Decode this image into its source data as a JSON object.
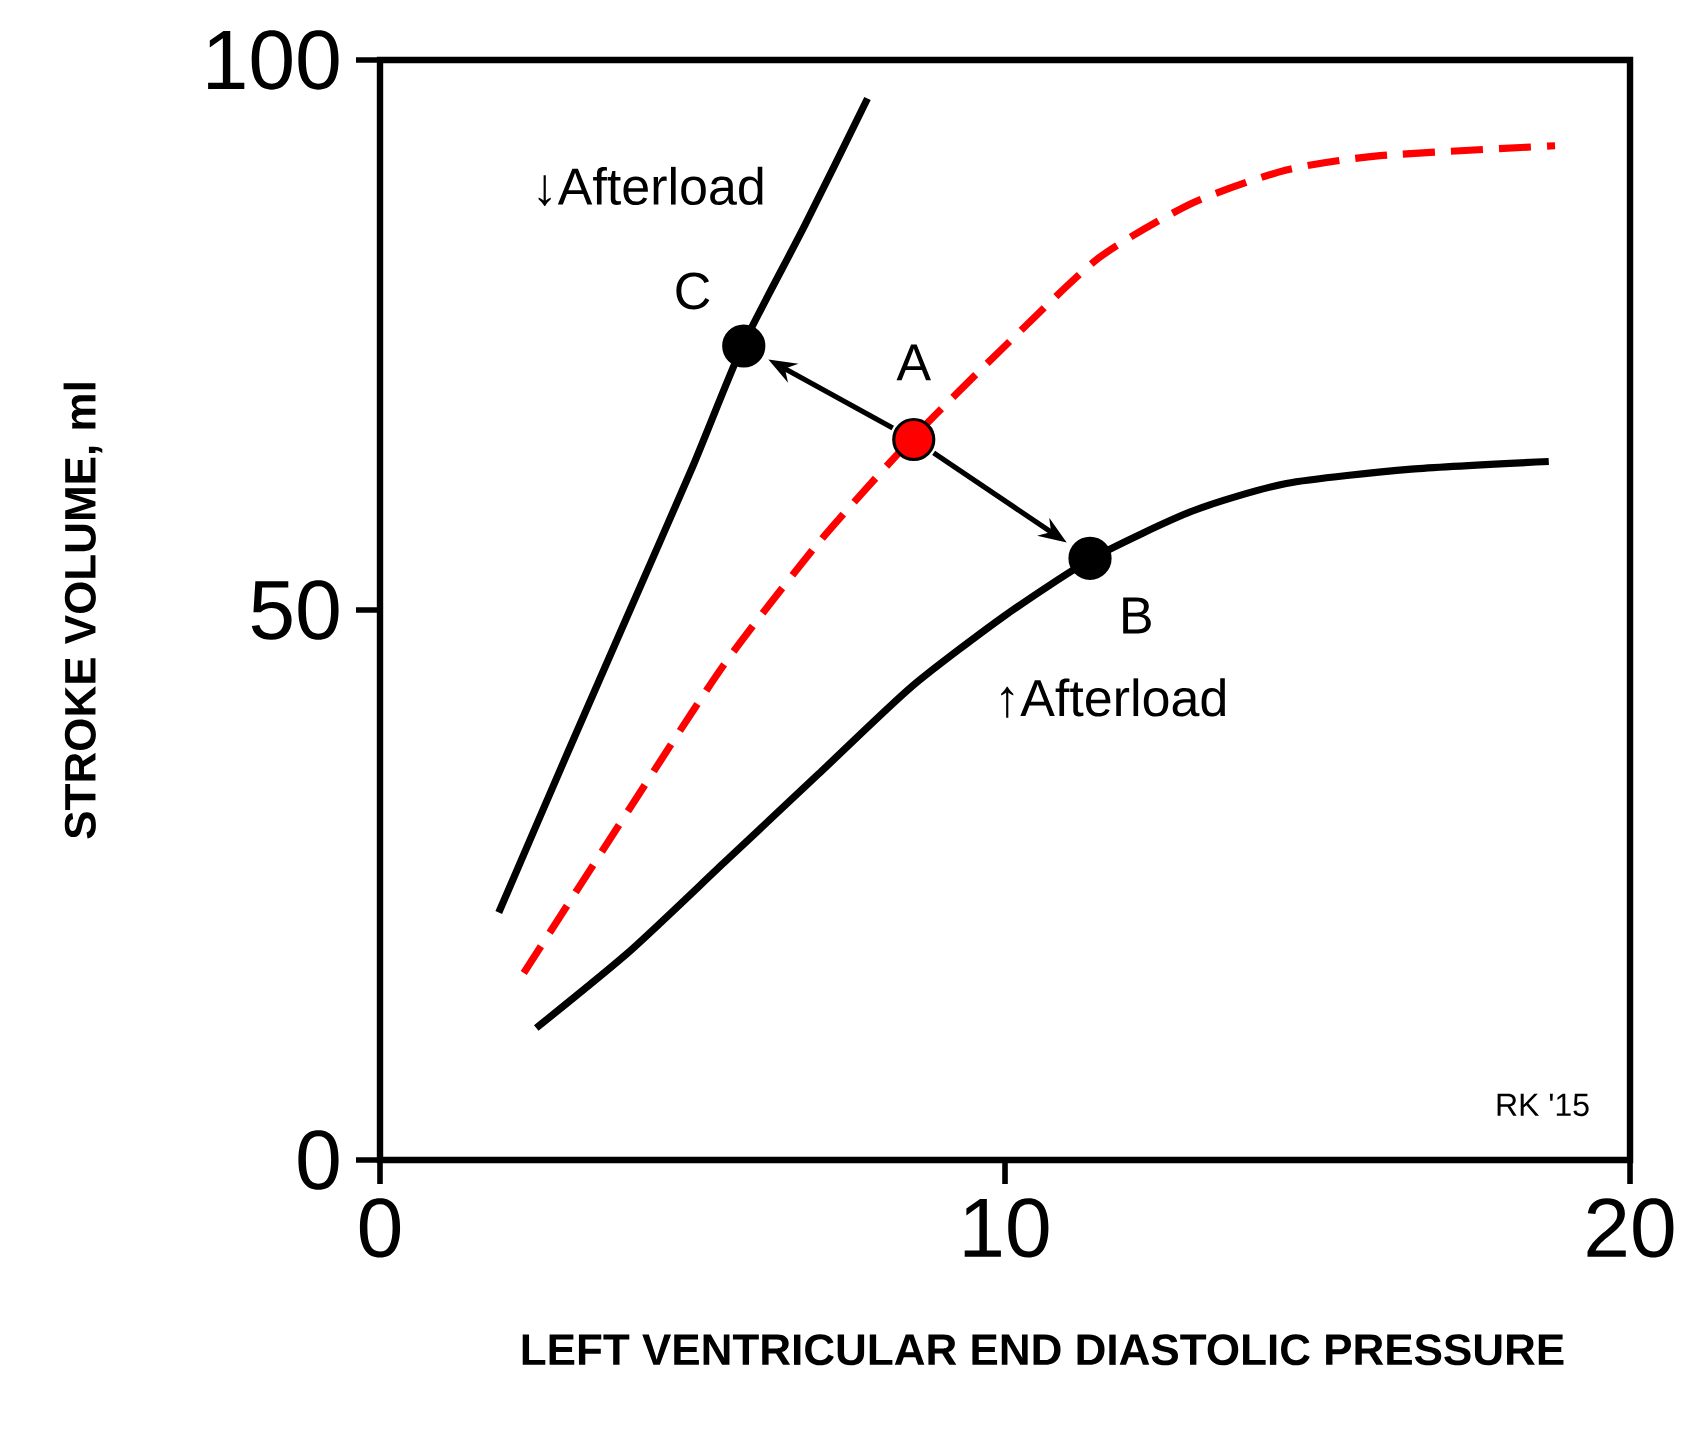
{
  "chart_data": {
    "type": "line",
    "xlabel": "LEFT VENTRICULAR END DIASTOLIC PRESSURE",
    "ylabel": "STROKE VOLUME, ml",
    "xlim": [
      0,
      20
    ],
    "ylim": [
      0,
      100
    ],
    "xticks": [
      0,
      10,
      20
    ],
    "yticks": [
      0,
      50,
      100
    ],
    "grid": false,
    "series": [
      {
        "color": "#000000",
        "line_style": "solid",
        "marker": "none",
        "x": [
          1.9,
          3,
          4,
          5,
          5.8,
          6.8,
          7.8
        ],
        "values": [
          22.5,
          37,
          50,
          63,
          74,
          85,
          96.5
        ]
      },
      {
        "color": "#ff0000",
        "line_style": "dashed",
        "marker": "none",
        "x": [
          2.3,
          4,
          5.5,
          7,
          8.5,
          10,
          11.5,
          13,
          14.5,
          16,
          18.8
        ],
        "values": [
          17,
          32,
          45,
          56,
          65.5,
          74,
          82,
          87,
          90,
          91.3,
          92.2
        ]
      },
      {
        "color": "#000000",
        "line_style": "solid",
        "marker": "none",
        "x": [
          2.5,
          4,
          5.5,
          7,
          8.5,
          10,
          11.4,
          13,
          14.5,
          16.5,
          18.7
        ],
        "values": [
          12,
          19,
          27,
          35,
          43,
          49.5,
          54.7,
          59,
          61.5,
          62.8,
          63.5
        ]
      },
      {
        "type": "scatter",
        "marker": "circle",
        "x": [
          8.54,
          11.36,
          5.82
        ],
        "values": [
          65.5,
          54.7,
          74
        ],
        "colors": [
          "#ff0000",
          "#000000",
          "#000000"
        ]
      }
    ],
    "annotations": [
      "A",
      "B",
      "C",
      "↓Afterload",
      "↑Afterload",
      "RK '15"
    ]
  }
}
